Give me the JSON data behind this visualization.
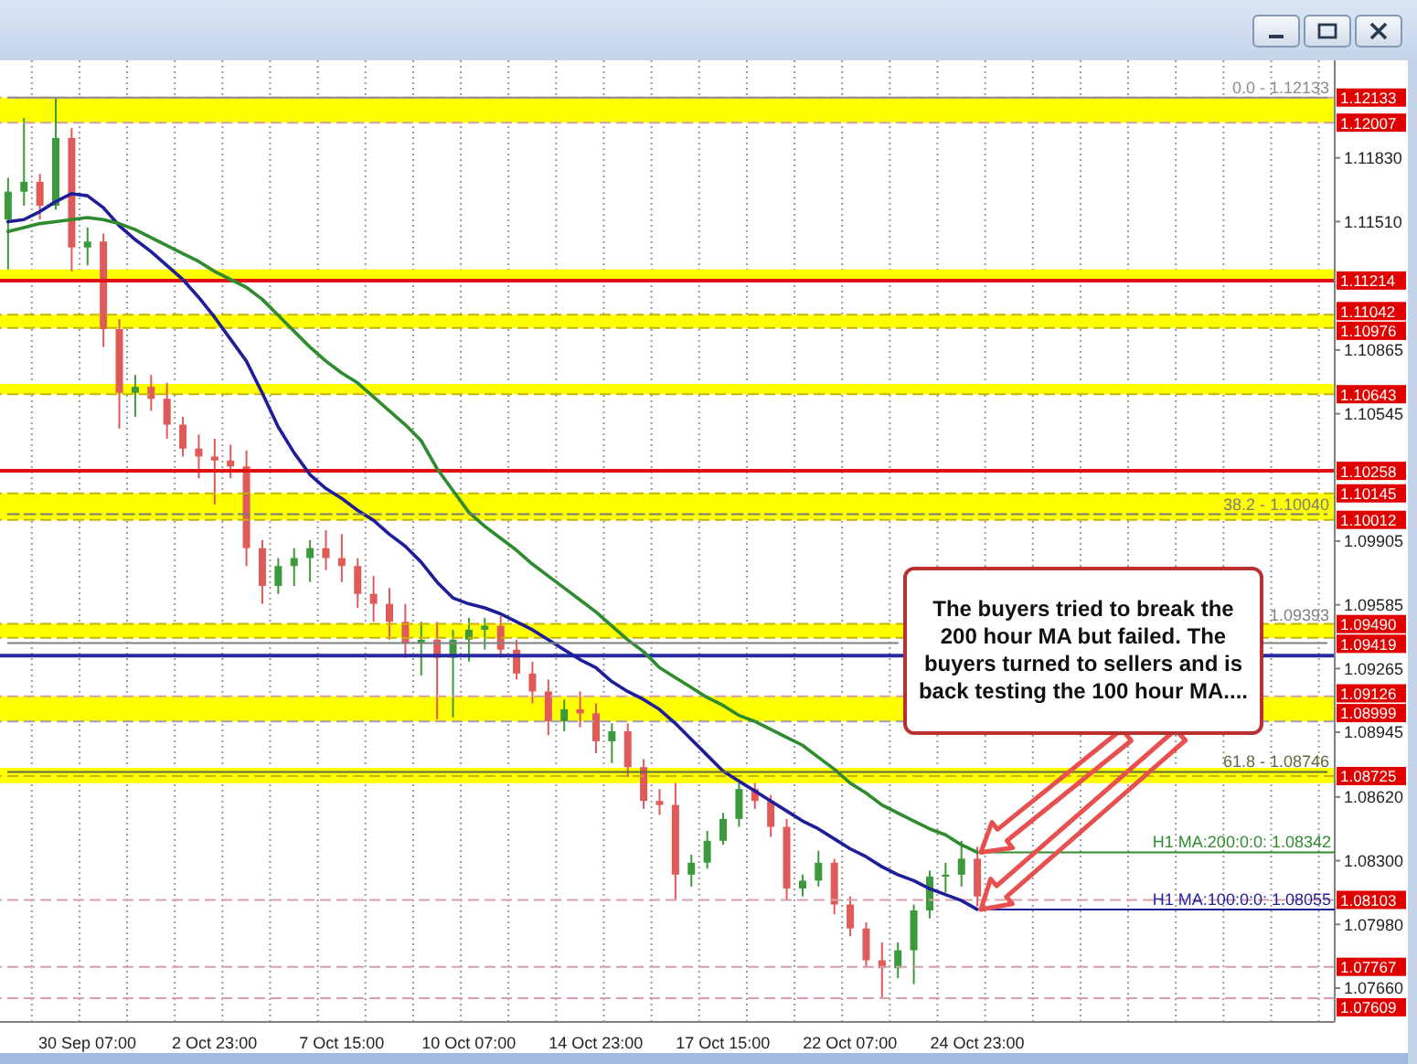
{
  "chart_data": {
    "type": "candlestick",
    "categories": [
      null,
      null,
      null,
      null,
      null,
      "30 Sep 07:00",
      null,
      null,
      null,
      null,
      null,
      null,
      null,
      "2 Oct 23:00",
      null,
      null,
      null,
      null,
      null,
      null,
      null,
      "7 Oct 15:00",
      null,
      null,
      null,
      null,
      null,
      null,
      null,
      "10 Oct 07:00",
      null,
      null,
      null,
      null,
      null,
      null,
      null,
      "14 Oct 23:00",
      null,
      null,
      null,
      null,
      null,
      null,
      null,
      "17 Oct 15:00",
      null,
      null,
      null,
      null,
      null,
      null,
      null,
      "22 Oct 07:00",
      null,
      null,
      null,
      null,
      null,
      null,
      null,
      "24 Oct 23:00",
      null,
      null,
      null,
      null,
      null,
      null,
      null,
      null,
      null,
      null,
      null,
      null,
      null,
      null,
      null,
      null,
      null,
      null,
      null,
      null,
      null,
      null
    ],
    "ohlc": [
      [
        1.1152,
        1.1173,
        1.1127,
        1.1166
      ],
      [
        1.1166,
        1.1203,
        1.1159,
        1.1171
      ],
      [
        1.1171,
        1.1175,
        1.1152,
        1.1159
      ],
      [
        1.1159,
        1.12133,
        1.1157,
        1.1193
      ],
      [
        1.1193,
        1.1198,
        1.1126,
        1.1138
      ],
      [
        1.1138,
        1.1148,
        1.1129,
        1.1141
      ],
      [
        1.1141,
        1.1145,
        1.1088,
        1.1097
      ],
      [
        1.1097,
        1.1102,
        1.1047,
        1.1065
      ],
      [
        1.1065,
        1.1074,
        1.1053,
        1.1068
      ],
      [
        1.1068,
        1.1074,
        1.1056,
        1.1062
      ],
      [
        1.1062,
        1.107,
        1.1042,
        1.1049
      ],
      [
        1.1049,
        1.1053,
        1.1033,
        1.1037
      ],
      [
        1.1037,
        1.1044,
        1.1022,
        1.1033
      ],
      [
        1.1033,
        1.1042,
        1.1009,
        1.1031
      ],
      [
        1.1031,
        1.1039,
        1.1022,
        1.1028
      ],
      [
        1.1028,
        1.1036,
        1.0978,
        1.0987
      ],
      [
        1.0987,
        1.0991,
        1.0959,
        1.0968
      ],
      [
        1.0968,
        1.0982,
        1.0964,
        1.0978
      ],
      [
        1.0978,
        1.0987,
        1.0968,
        1.0982
      ],
      [
        1.0982,
        1.0991,
        1.097,
        1.0987
      ],
      [
        1.0987,
        1.0996,
        1.0976,
        1.0982
      ],
      [
        1.0982,
        1.0994,
        1.097,
        1.0978
      ],
      [
        1.0978,
        1.0982,
        1.0957,
        1.0964
      ],
      [
        1.0964,
        1.0973,
        1.095,
        1.0959
      ],
      [
        1.0959,
        1.0967,
        1.0941,
        1.095
      ],
      [
        1.095,
        1.0959,
        1.0932,
        1.0939
      ],
      [
        1.0939,
        1.095,
        1.0923,
        1.0941
      ],
      [
        1.0941,
        1.095,
        1.0901,
        1.0932
      ],
      [
        1.0932,
        1.0946,
        1.0902,
        1.0941
      ],
      [
        1.0941,
        1.0952,
        1.093,
        1.0946
      ],
      [
        1.0946,
        1.0952,
        1.0936,
        1.0948
      ],
      [
        1.0948,
        1.0953,
        1.0932,
        1.0936
      ],
      [
        1.0936,
        1.0941,
        1.0921,
        1.0924
      ],
      [
        1.0924,
        1.093,
        1.0909,
        1.0915
      ],
      [
        1.0915,
        1.0921,
        1.0893,
        1.09
      ],
      [
        1.09,
        1.0911,
        1.0895,
        1.0906
      ],
      [
        1.0906,
        1.0915,
        1.0897,
        1.0904
      ],
      [
        1.0904,
        1.0909,
        1.0884,
        1.089
      ],
      [
        1.089,
        1.0899,
        1.0879,
        1.0895
      ],
      [
        1.0895,
        1.0899,
        1.0872,
        1.0877
      ],
      [
        1.0877,
        1.0881,
        1.0856,
        1.086
      ],
      [
        1.086,
        1.0866,
        1.0853,
        1.0858
      ],
      [
        1.0858,
        1.0869,
        1.081,
        1.0823
      ],
      [
        1.0823,
        1.0833,
        1.0817,
        1.0829
      ],
      [
        1.0829,
        1.0845,
        1.0826,
        1.084
      ],
      [
        1.084,
        1.0854,
        1.0838,
        1.0851
      ],
      [
        1.0851,
        1.0869,
        1.0847,
        1.0866
      ],
      [
        1.0866,
        1.0869,
        1.0856,
        1.086
      ],
      [
        1.086,
        1.0863,
        1.0842,
        1.0847
      ],
      [
        1.0847,
        1.0851,
        1.081,
        1.0816
      ],
      [
        1.0816,
        1.0823,
        1.0812,
        1.082
      ],
      [
        1.082,
        1.0835,
        1.0817,
        1.0829
      ],
      [
        1.0829,
        1.0831,
        1.0803,
        1.0808
      ],
      [
        1.0808,
        1.0812,
        1.0792,
        1.0796
      ],
      [
        1.0796,
        1.0799,
        1.0776,
        1.078
      ],
      [
        1.078,
        1.0789,
        1.0761,
        1.0776
      ],
      [
        1.0776,
        1.0789,
        1.0771,
        1.0785
      ],
      [
        1.0785,
        1.0808,
        1.0768,
        1.0805
      ],
      [
        1.0805,
        1.0825,
        1.0801,
        1.0822
      ],
      [
        1.0822,
        1.0829,
        1.0814,
        1.0823
      ],
      [
        1.0823,
        1.084,
        1.0817,
        1.0831
      ],
      [
        1.0831,
        1.0837,
        1.0807,
        1.0812
      ],
      null,
      null,
      null,
      null,
      null,
      null,
      null,
      null,
      null,
      null,
      null,
      null,
      null,
      null,
      null,
      null,
      null,
      null,
      null,
      null,
      null,
      null
    ],
    "colors": [
      "#3c9a3c",
      "#3c9a3c",
      "#e05a5a",
      "#3c9a3c",
      "#e05a5a",
      "#3c9a3c",
      "#e05a5a",
      "#e05a5a",
      "#3c9a3c",
      "#e05a5a",
      "#e05a5a",
      "#e05a5a",
      "#e05a5a",
      "#e05a5a",
      "#e05a5a",
      "#e05a5a",
      "#e05a5a",
      "#3c9a3c",
      "#3c9a3c",
      "#3c9a3c",
      "#e05a5a",
      "#e05a5a",
      "#e05a5a",
      "#e05a5a",
      "#e05a5a",
      "#e05a5a",
      "#3c9a3c",
      "#e05a5a",
      "#3c9a3c",
      "#3c9a3c",
      "#3c9a3c",
      "#e05a5a",
      "#e05a5a",
      "#e05a5a",
      "#e05a5a",
      "#3c9a3c",
      "#e05a5a",
      "#e05a5a",
      "#3c9a3c",
      "#e05a5a",
      "#e05a5a",
      "#e05a5a",
      "#e05a5a",
      "#3c9a3c",
      "#3c9a3c",
      "#3c9a3c",
      "#3c9a3c",
      "#e05a5a",
      "#e05a5a",
      "#e05a5a",
      "#3c9a3c",
      "#3c9a3c",
      "#e05a5a",
      "#e05a5a",
      "#e05a5a",
      "#e05a5a",
      "#3c9a3c",
      "#3c9a3c",
      "#3c9a3c",
      "#3c9a3c",
      "#3c9a3c",
      "#e05a5a",
      null,
      null,
      null,
      null,
      null,
      null,
      null,
      null,
      null,
      null,
      null,
      null,
      null,
      null,
      null,
      null,
      null,
      null,
      null,
      null,
      null,
      null
    ],
    "series": [
      {
        "type": "line",
        "color": "#1e1e9a",
        "values": [
          1.1151,
          1.1152,
          1.1156,
          1.1161,
          1.1165,
          1.1164,
          1.1158,
          1.1149,
          1.1142,
          1.1136,
          1.1129,
          1.1122,
          1.1113,
          1.1103,
          1.1092,
          1.1081,
          1.1065,
          1.1048,
          1.1035,
          1.1024,
          1.1017,
          1.1012,
          1.1006,
          1.1001,
          1.0994,
          1.0988,
          1.098,
          1.097,
          1.0962,
          1.0959,
          1.0957,
          1.0954,
          1.095,
          1.0946,
          1.0941,
          1.0936,
          1.0931,
          1.0927,
          1.092,
          1.0915,
          1.0911,
          1.0906,
          1.0899,
          1.0891,
          1.0883,
          1.0875,
          1.087,
          1.0865,
          1.086,
          1.0855,
          1.085,
          1.0846,
          1.0841,
          1.0836,
          1.0832,
          1.0827,
          1.0823,
          1.082,
          1.0816,
          1.0813,
          1.081,
          1.08055,
          null,
          null,
          null,
          null,
          null,
          null,
          null,
          null,
          null,
          null,
          null,
          null,
          null,
          null,
          null,
          null,
          null,
          null,
          null,
          null,
          null,
          null
        ]
      },
      {
        "type": "line",
        "color": "#2e8b2e",
        "values": [
          1.1146,
          1.1148,
          1.115,
          1.1151,
          1.1152,
          1.1153,
          1.1152,
          1.115,
          1.1147,
          1.1143,
          1.1139,
          1.1135,
          1.1131,
          1.1126,
          1.1122,
          1.1118,
          1.1112,
          1.1104,
          1.1096,
          1.1088,
          1.1081,
          1.1075,
          1.107,
          1.1063,
          1.1056,
          1.1049,
          1.1041,
          1.1027,
          1.1016,
          1.1005,
          1.0998,
          1.0992,
          1.0986,
          1.0979,
          1.0973,
          1.0967,
          1.0961,
          1.0955,
          1.0948,
          1.0941,
          1.0935,
          1.0927,
          1.0922,
          1.0917,
          1.0912,
          1.0908,
          1.0903,
          1.09,
          1.0896,
          1.0892,
          1.0888,
          1.0882,
          1.0876,
          1.0869,
          1.0864,
          1.0858,
          1.0854,
          1.085,
          1.0846,
          1.0843,
          1.0838,
          1.08342,
          null,
          null,
          null,
          null,
          null,
          null,
          null,
          null,
          null,
          null,
          null,
          null,
          null,
          null,
          null,
          null,
          null,
          null,
          null,
          null,
          null,
          null
        ]
      },
      {
        "type": "line",
        "name": "0.0 - 1.12133",
        "color": "#8c8c8c",
        "values": [
          1.12133,
          1.12133,
          1.12133,
          1.12133,
          1.12133,
          1.12133,
          1.12133,
          1.12133,
          1.12133,
          1.12133,
          1.12133,
          1.12133,
          1.12133,
          1.12133,
          1.12133,
          1.12133,
          1.12133,
          1.12133,
          1.12133,
          1.12133,
          1.12133,
          1.12133,
          1.12133,
          1.12133,
          1.12133,
          1.12133,
          1.12133,
          1.12133,
          1.12133,
          1.12133,
          1.12133,
          1.12133,
          1.12133,
          1.12133,
          1.12133,
          1.12133,
          1.12133,
          1.12133,
          1.12133,
          1.12133,
          1.12133,
          1.12133,
          1.12133,
          1.12133,
          1.12133,
          1.12133,
          1.12133,
          1.12133,
          1.12133,
          1.12133,
          1.12133,
          1.12133,
          1.12133,
          1.12133,
          1.12133,
          1.12133,
          1.12133,
          1.12133,
          1.12133,
          1.12133,
          1.12133,
          1.12133,
          1.12133,
          1.12133,
          1.12133,
          1.12133,
          1.12133,
          1.12133,
          1.12133,
          1.12133,
          1.12133,
          1.12133,
          1.12133,
          1.12133,
          1.12133,
          1.12133,
          1.12133,
          1.12133,
          1.12133,
          1.12133,
          1.12133,
          1.12133,
          1.12133,
          1.12133
        ]
      },
      {
        "type": "line",
        "name": "38.2 - 1.10040",
        "color": "#7a7a7a",
        "line_style": "dashed",
        "values": [
          1.1004,
          1.1004,
          1.1004,
          1.1004,
          1.1004,
          1.1004,
          1.1004,
          1.1004,
          1.1004,
          1.1004,
          1.1004,
          1.1004,
          1.1004,
          1.1004,
          1.1004,
          1.1004,
          1.1004,
          1.1004,
          1.1004,
          1.1004,
          1.1004,
          1.1004,
          1.1004,
          1.1004,
          1.1004,
          1.1004,
          1.1004,
          1.1004,
          1.1004,
          1.1004,
          1.1004,
          1.1004,
          1.1004,
          1.1004,
          1.1004,
          1.1004,
          1.1004,
          1.1004,
          1.1004,
          1.1004,
          1.1004,
          1.1004,
          1.1004,
          1.1004,
          1.1004,
          1.1004,
          1.1004,
          1.1004,
          1.1004,
          1.1004,
          1.1004,
          1.1004,
          1.1004,
          1.1004,
          1.1004,
          1.1004,
          1.1004,
          1.1004,
          1.1004,
          1.1004,
          1.1004,
          1.1004,
          1.1004,
          1.1004,
          1.1004,
          1.1004,
          1.1004,
          1.1004,
          1.1004,
          1.1004,
          1.1004,
          1.1004,
          1.1004,
          1.1004,
          1.1004,
          1.1004,
          1.1004,
          1.1004,
          1.1004,
          1.1004,
          1.1004,
          1.1004,
          1.1004,
          1.1004
        ]
      },
      {
        "type": "line",
        "name": "1.09393",
        "color": "#808080",
        "values": [
          1.09393,
          1.09393,
          1.09393,
          1.09393,
          1.09393,
          1.09393,
          1.09393,
          1.09393,
          1.09393,
          1.09393,
          1.09393,
          1.09393,
          1.09393,
          1.09393,
          1.09393,
          1.09393,
          1.09393,
          1.09393,
          1.09393,
          1.09393,
          1.09393,
          1.09393,
          1.09393,
          1.09393,
          1.09393,
          1.09393,
          1.09393,
          1.09393,
          1.09393,
          1.09393,
          1.09393,
          1.09393,
          1.09393,
          1.09393,
          1.09393,
          1.09393,
          1.09393,
          1.09393,
          1.09393,
          1.09393,
          1.09393,
          1.09393,
          1.09393,
          1.09393,
          1.09393,
          1.09393,
          1.09393,
          1.09393,
          1.09393,
          1.09393,
          1.09393,
          1.09393,
          1.09393,
          1.09393,
          1.09393,
          1.09393,
          1.09393,
          null,
          null,
          null,
          null,
          null,
          null,
          null,
          null,
          null,
          null,
          null,
          null,
          null,
          null,
          null,
          null,
          null,
          null,
          null,
          null,
          null,
          null,
          1.09393,
          1.09393,
          1.09393,
          1.09393,
          1.09393
        ]
      },
      {
        "type": "line",
        "name": "61.8 - 1.08746",
        "color": "#5a6a3a",
        "values": [
          1.08746,
          1.08746,
          1.08746,
          1.08746,
          1.08746,
          1.08746,
          1.08746,
          1.08746,
          1.08746,
          1.08746,
          1.08746,
          1.08746,
          1.08746,
          1.08746,
          1.08746,
          1.08746,
          1.08746,
          1.08746,
          1.08746,
          1.08746,
          1.08746,
          1.08746,
          1.08746,
          1.08746,
          1.08746,
          1.08746,
          1.08746,
          1.08746,
          1.08746,
          1.08746,
          1.08746,
          1.08746,
          1.08746,
          1.08746,
          1.08746,
          1.08746,
          1.08746,
          1.08746,
          1.08746,
          1.08746,
          1.08746,
          1.08746,
          1.08746,
          1.08746,
          1.08746,
          1.08746,
          1.08746,
          1.08746,
          1.08746,
          1.08746,
          1.08746,
          1.08746,
          1.08746,
          1.08746,
          1.08746,
          1.08746,
          1.08746,
          1.08746,
          1.08746,
          1.08746,
          1.08746,
          1.08746,
          1.08746,
          1.08746,
          1.08746,
          1.08746,
          1.08746,
          1.08746,
          1.08746,
          1.08746,
          1.08746,
          1.08746,
          1.08746,
          1.08746,
          1.08746,
          1.08746,
          1.08746,
          1.08746,
          1.08746,
          1.08746,
          1.08746,
          1.08746,
          1.08746,
          1.08746
        ]
      }
    ],
    "ylim": [
      1.0749,
      1.1232
    ],
    "yticks": [
      {
        "value": 1.1183,
        "label": "1.11830"
      },
      {
        "value": 1.1151,
        "label": "1.11510"
      },
      1.10865,
      1.10545,
      1.09905,
      1.09585,
      1.09265,
      1.08945,
      {
        "value": 1.0862,
        "label": "1.08620"
      },
      {
        "value": 1.083,
        "label": "1.08300"
      },
      {
        "value": 1.0798,
        "label": "1.07980"
      },
      {
        "value": 1.0766,
        "label": "1.07660"
      }
    ],
    "grid": "x",
    "bands": [
      {
        "axis": "y",
        "from": 1.12007,
        "to": 1.12133,
        "color": "#ffff00"
      },
      {
        "axis": "y",
        "from": 1.11214,
        "to": 1.1127,
        "color": "#ffff00"
      },
      {
        "axis": "y",
        "from": 1.10976,
        "to": 1.11042,
        "color": "#ffff00"
      },
      {
        "axis": "y",
        "from": 1.10643,
        "to": 1.10695,
        "color": "#ffff00"
      },
      {
        "axis": "y",
        "from": 1.10012,
        "to": 1.10145,
        "color": "#ffff00"
      },
      {
        "axis": "y",
        "from": 1.09419,
        "to": 1.0949,
        "color": "#ffff00"
      },
      {
        "axis": "y",
        "from": 1.08999,
        "to": 1.09126,
        "color": "#ffff00"
      },
      {
        "axis": "y",
        "from": 1.0869,
        "to": 1.08766,
        "color": "#ffff00"
      }
    ],
    "ref_lines": [
      {
        "axis": "y",
        "value": 1.12133,
        "label": "1.12133",
        "color": "#d8a0aa",
        "line_style": "dashed"
      },
      {
        "axis": "y",
        "value": 1.12007,
        "label": "1.12007",
        "color": "#d8a0aa",
        "line_style": "dashed"
      },
      {
        "axis": "y",
        "value": 1.11214,
        "label": "1.11214",
        "color": "#e01010",
        "line_style": "solid"
      },
      {
        "axis": "y",
        "value": 1.11042,
        "label": "1.11042",
        "color": "#c8b400",
        "line_style": "dashed"
      },
      {
        "axis": "y",
        "value": 1.10976,
        "label": "1.10976",
        "color": "#c8b400",
        "line_style": "dashed"
      },
      {
        "axis": "y",
        "value": 1.10643,
        "label": "1.10643",
        "color": "#c8b400",
        "line_style": "dashed"
      },
      {
        "axis": "y",
        "value": 1.10258,
        "label": "1.10258",
        "color": "#e01010",
        "line_style": "solid"
      },
      {
        "axis": "y",
        "value": 1.10145,
        "label": "1.10145",
        "color": "#c8b400",
        "line_style": "dashed"
      },
      {
        "axis": "y",
        "value": 1.10012,
        "label": "1.10012",
        "color": "#c8b400",
        "line_style": "dashed"
      },
      {
        "axis": "y",
        "value": 1.0949,
        "label": "1.09490",
        "color": "#c8b400",
        "line_style": "dashed"
      },
      {
        "axis": "y",
        "value": 1.09419,
        "label": "1.09419",
        "color": "#c8b400",
        "line_style": "dashed"
      },
      {
        "axis": "y",
        "value": 1.0933,
        "color": "#2a2aa0",
        "line_style": "solid"
      },
      {
        "axis": "y",
        "value": 1.09126,
        "label": "1.09126",
        "color": "#d8a0aa",
        "line_style": "dashed"
      },
      {
        "axis": "y",
        "value": 1.08999,
        "label": "1.08999",
        "color": "#a0a0b8",
        "line_style": "dashed"
      },
      {
        "axis": "y",
        "value": 1.08725,
        "label": "1.08725",
        "color": "#c8b400",
        "line_style": "dashed"
      },
      {
        "axis": "y",
        "value": 1.08103,
        "label": "1.08103",
        "color": "#d8a0aa",
        "line_style": "dashed"
      },
      {
        "axis": "y",
        "value": 1.07767,
        "label": "1.07767",
        "color": "#d8a0aa",
        "line_style": "dashed"
      },
      {
        "axis": "y",
        "value": 1.07609,
        "label": "1.07609",
        "color": "#d8a0aa",
        "line_style": "dashed"
      }
    ],
    "annotations": [
      "The buyers tried to break the 200 hour MA but failed. The buyers turned to sellers and is back testing the 100 hour MA....",
      {
        "text": "H1 MA:200:0:0: 1.08342",
        "x": "24 Oct 23:00",
        "y": 1.08342
      },
      {
        "text": "H1 MA:100:0:0: 1.08055",
        "x": "24 Oct 23:00",
        "y": 1.08055
      }
    ]
  }
}
